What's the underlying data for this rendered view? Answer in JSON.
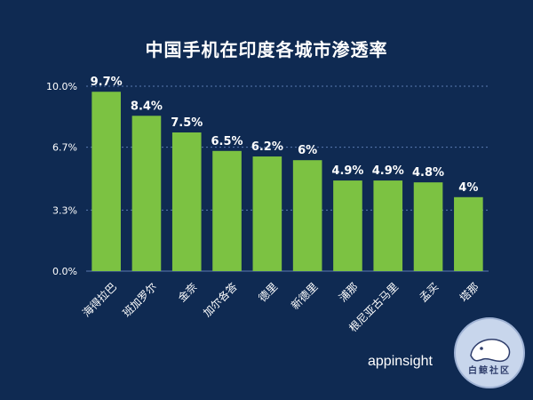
{
  "header": {
    "title": "中国手机在印度各城市渗透率"
  },
  "footer": {
    "brand": "appinsight",
    "badge_text": "白鲸社区"
  },
  "colors": {
    "background": "#0f2a52",
    "bar": "#7cc242",
    "grid": "#5b7bb0",
    "text": "#ffffff"
  },
  "chart_data": {
    "type": "bar",
    "title": "中国手机在印度各城市渗透率",
    "xlabel": "",
    "ylabel": "",
    "categories": [
      "海得拉巴",
      "班加罗尔",
      "金奈",
      "加尔各答",
      "德里",
      "新德里",
      "浦那",
      "根尼亚古马里",
      "孟买",
      "塔那"
    ],
    "values": [
      9.7,
      8.4,
      7.5,
      6.5,
      6.2,
      6,
      4.9,
      4.9,
      4.8,
      4
    ],
    "value_labels": [
      "9.7%",
      "8.4%",
      "7.5%",
      "6.5%",
      "6.2%",
      "6%",
      "4.9%",
      "4.9%",
      "4.8%",
      "4%"
    ],
    "ylim": [
      0,
      10
    ],
    "yticks": [
      0,
      3.3,
      6.7,
      10
    ],
    "ytick_labels": [
      "0.0%",
      "3.3%",
      "6.7%",
      "10.0%"
    ],
    "grid": true,
    "legend": "none"
  }
}
